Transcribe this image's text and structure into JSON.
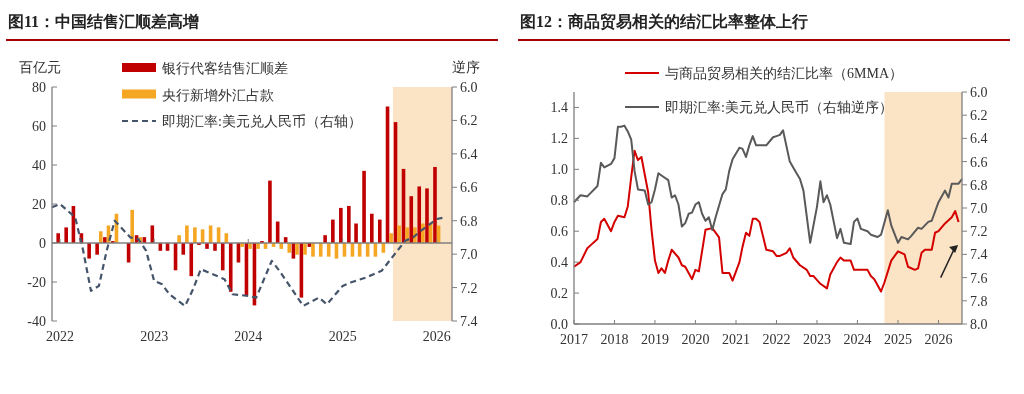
{
  "chart_data": [
    {
      "type": "bar",
      "title": "图11：中国结售汇顺差高增",
      "ylabel": "百亿元",
      "y2label": "逆序",
      "legend": "top",
      "x": [
        "2022-01",
        "2022-02",
        "2022-03",
        "2022-04",
        "2022-05",
        "2022-06",
        "2022-07",
        "2022-08",
        "2022-09",
        "2022-10",
        "2022-11",
        "2022-12",
        "2023-01",
        "2023-02",
        "2023-03",
        "2023-04",
        "2023-05",
        "2023-06",
        "2023-07",
        "2023-08",
        "2023-09",
        "2023-10",
        "2023-11",
        "2023-12",
        "2024-01",
        "2024-02",
        "2024-03",
        "2024-04",
        "2024-05",
        "2024-06",
        "2024-07",
        "2024-08",
        "2024-09",
        "2024-10",
        "2024-11",
        "2024-12",
        "2025-01",
        "2025-02",
        "2025-03",
        "2025-04",
        "2025-05",
        "2025-06",
        "2025-07",
        "2025-08",
        "2025-09",
        "2025-10",
        "2025-11",
        "2025-12",
        "2026-01"
      ],
      "xlim": [
        "2021-12",
        "2026-03"
      ],
      "xticks": [
        {
          "value": "2022-01",
          "label": "2022"
        },
        {
          "value": "2023-01",
          "label": "2023"
        },
        {
          "value": "2024-01",
          "label": "2024"
        },
        {
          "value": "2025-01",
          "label": "2025"
        },
        {
          "value": "2026-01",
          "label": "2026"
        }
      ],
      "ylim": [
        -40,
        80
      ],
      "yticks": [
        -40,
        -20,
        0,
        20,
        40,
        60,
        80
      ],
      "y2lim": [
        7.4,
        6.0
      ],
      "y2ticks": [
        {
          "value": 6,
          "label": "6.0"
        },
        {
          "value": 6.2,
          "label": "6.2"
        },
        {
          "value": 6.4,
          "label": "6.4"
        },
        {
          "value": 6.6,
          "label": "6.6"
        },
        {
          "value": 6.8,
          "label": "6.8"
        },
        {
          "value": 7,
          "label": "7.0"
        },
        {
          "value": 7.2,
          "label": "7.2"
        },
        {
          "value": 7.4,
          "label": "7.4"
        }
      ],
      "bands": [
        {
          "axis": "x",
          "from": "2025-07-15",
          "to": "2026-03",
          "color": "#fbe3c6"
        }
      ],
      "series": [
        {
          "name": "银行代客结售汇顺差",
          "color": "#c00000",
          "values": [
            5,
            8,
            19,
            5,
            -8,
            -6,
            3,
            1,
            0,
            -10,
            4,
            3,
            9,
            -4,
            -4,
            -14,
            -6,
            -17,
            -1,
            -3,
            -4,
            -14,
            -25,
            -10,
            -27,
            -32,
            1,
            32,
            11,
            3,
            -8,
            -28,
            -2,
            0,
            4,
            12,
            18,
            19,
            10,
            37,
            15,
            12,
            70,
            62,
            38,
            24,
            29,
            28,
            39
          ]
        },
        {
          "name": "央行新增外汇占款",
          "color": "#f5a623",
          "values": [
            0,
            0,
            0,
            0,
            0,
            6,
            9,
            15,
            0,
            17,
            3,
            0,
            0,
            0,
            0,
            4,
            9,
            8,
            7,
            9,
            8,
            5,
            null,
            -2,
            -3,
            -3,
            -3,
            -2,
            -3,
            -5,
            -6,
            -6,
            -7,
            -7,
            -7,
            -8,
            -7,
            -7,
            -7,
            -7,
            -7,
            -5,
            5,
            9,
            8,
            8,
            10,
            10,
            9
          ]
        },
        {
          "name": "即期汇率:美元兑人民币（右轴）",
          "type": "line",
          "axis": "y2",
          "line_style": "dashed",
          "color": "#44546a",
          "x": [
            "2021-12",
            "2022-01",
            "2022-03",
            "2022-04",
            "2022-05",
            "2022-06",
            "2022-07",
            "2022-08",
            "2022-10",
            "2022-11",
            "2022-12",
            "2023-01",
            "2023-02",
            "2023-03",
            "2023-05",
            "2023-06",
            "2023-07",
            "2023-08",
            "2023-10",
            "2023-11",
            "2024-01",
            "2024-02",
            "2024-04",
            "2024-05",
            "2024-08",
            "2024-10",
            "2024-11",
            "2025-01",
            "2025-02",
            "2025-04",
            "2025-05",
            "2025-06",
            "2025-08",
            "2025-09",
            "2025-10",
            "2025-11",
            "2026-01",
            "2026-02"
          ],
          "values": [
            6.72,
            6.7,
            6.78,
            6.98,
            7.22,
            7.19,
            6.98,
            6.8,
            6.9,
            6.91,
            6.98,
            7.16,
            7.18,
            7.24,
            7.31,
            7.21,
            7.09,
            7.11,
            7.15,
            7.24,
            7.25,
            7.26,
            7.04,
            7.1,
            7.31,
            7.26,
            7.3,
            7.19,
            7.17,
            7.14,
            7.12,
            7.1,
            6.98,
            6.92,
            6.9,
            6.86,
            6.79,
            6.78
          ]
        }
      ]
    },
    {
      "type": "line",
      "title": "图12：商品贸易相关的结汇比率整体上行",
      "legend": "top left",
      "xlim": [
        "2017-01",
        "2026-08"
      ],
      "xticks": [
        {
          "value": "2017-01",
          "label": "2017"
        },
        {
          "value": "2018-01",
          "label": "2018"
        },
        {
          "value": "2019-01",
          "label": "2019"
        },
        {
          "value": "2020-01",
          "label": "2020"
        },
        {
          "value": "2021-01",
          "label": "2021"
        },
        {
          "value": "2022-01",
          "label": "2022"
        },
        {
          "value": "2023-01",
          "label": "2023"
        },
        {
          "value": "2024-01",
          "label": "2024"
        },
        {
          "value": "2025-01",
          "label": "2025"
        },
        {
          "value": "2026-01",
          "label": "2026"
        }
      ],
      "ylim": [
        0,
        1.5
      ],
      "yticks": [
        {
          "value": 0,
          "label": "0.0"
        },
        {
          "value": 0.2,
          "label": "0.2"
        },
        {
          "value": 0.4,
          "label": "0.4"
        },
        {
          "value": 0.6,
          "label": "0.6"
        },
        {
          "value": 0.8,
          "label": "0.8"
        },
        {
          "value": 1,
          "label": "1.0"
        },
        {
          "value": 1.2,
          "label": "1.2"
        },
        {
          "value": 1.4,
          "label": "1.4"
        }
      ],
      "y2lim": [
        8.0,
        6.0
      ],
      "y2ticks": [
        {
          "value": 6,
          "label": "6.0"
        },
        {
          "value": 6.2,
          "label": "6.2"
        },
        {
          "value": 6.4,
          "label": "6.4"
        },
        {
          "value": 6.6,
          "label": "6.6"
        },
        {
          "value": 6.8,
          "label": "6.8"
        },
        {
          "value": 7,
          "label": "7.0"
        },
        {
          "value": 7.2,
          "label": "7.2"
        },
        {
          "value": 7.4,
          "label": "7.4"
        },
        {
          "value": 7.6,
          "label": "7.6"
        },
        {
          "value": 7.8,
          "label": "7.8"
        },
        {
          "value": 8,
          "label": "8.0"
        }
      ],
      "bands": [
        {
          "axis": "x",
          "from": "2024-09",
          "to": "2026-08",
          "color": "#fbe3c6"
        }
      ],
      "series": [
        {
          "name": "与商品贸易相关的结汇比率（6MMA）",
          "color": "#d40000",
          "x": [
            "2017-01",
            "2017-03",
            "2017-05",
            "2017-06",
            "2017-08",
            "2017-09",
            "2017-10",
            "2017-12",
            "2018-01",
            "2018-02",
            "2018-04",
            "2018-05",
            "2018-06",
            "2018-07",
            "2018-08",
            "2018-09",
            "2018-11",
            "2018-12",
            "2019-01",
            "2019-02",
            "2019-03",
            "2019-04",
            "2019-05",
            "2019-06",
            "2019-08",
            "2019-09",
            "2019-10",
            "2019-11",
            "2019-12",
            "2020-01",
            "2020-02",
            "2020-04",
            "2020-06",
            "2020-08",
            "2020-09",
            "2020-11",
            "2020-12",
            "2021-02",
            "2021-03",
            "2021-04",
            "2021-05",
            "2021-06",
            "2021-07",
            "2021-08",
            "2021-10",
            "2021-12",
            "2022-01",
            "2022-02",
            "2022-04",
            "2022-05",
            "2022-06",
            "2022-08",
            "2022-10",
            "2022-11",
            "2022-12",
            "2023-02",
            "2023-04",
            "2023-05",
            "2023-07",
            "2023-08",
            "2023-09",
            "2023-11",
            "2023-12",
            "2024-02",
            "2024-04",
            "2024-05",
            "2024-06",
            "2024-08",
            "2024-09",
            "2024-11",
            "2025-01",
            "2025-03",
            "2025-04",
            "2025-06",
            "2025-07",
            "2025-08",
            "2025-09",
            "2025-11",
            "2025-12",
            "2026-01",
            "2026-03",
            "2026-05",
            "2026-06",
            "2026-07"
          ],
          "values": [
            0.37,
            0.4,
            0.49,
            0.51,
            0.55,
            0.66,
            0.68,
            0.6,
            0.66,
            0.7,
            0.69,
            0.76,
            0.95,
            1.12,
            1.06,
            1.08,
            0.85,
            0.61,
            0.41,
            0.33,
            0.36,
            0.33,
            0.41,
            0.48,
            0.43,
            0.38,
            0.37,
            0.33,
            0.29,
            0.35,
            0.34,
            0.61,
            0.62,
            0.56,
            0.33,
            0.33,
            0.28,
            0.4,
            0.5,
            0.59,
            0.57,
            0.68,
            0.68,
            0.66,
            0.48,
            0.47,
            0.44,
            0.44,
            0.46,
            0.49,
            0.43,
            0.38,
            0.35,
            0.31,
            0.31,
            0.26,
            0.23,
            0.32,
            0.4,
            0.43,
            0.41,
            0.41,
            0.35,
            0.35,
            0.35,
            0.31,
            0.29,
            0.21,
            0.27,
            0.41,
            0.47,
            0.45,
            0.37,
            0.35,
            0.36,
            0.46,
            0.48,
            0.48,
            0.59,
            0.6,
            0.65,
            0.69,
            0.73,
            0.66
          ]
        },
        {
          "name": "即期汇率:美元兑人民币（右轴逆序）",
          "axis": "y2",
          "color": "#595959",
          "x": [
            "2017-01",
            "2017-03",
            "2017-05",
            "2017-06",
            "2017-08",
            "2017-09",
            "2017-10",
            "2017-12",
            "2018-01",
            "2018-02",
            "2018-03",
            "2018-04",
            "2018-05",
            "2018-06",
            "2018-07",
            "2018-08",
            "2018-10",
            "2018-11",
            "2018-12",
            "2019-01",
            "2019-02",
            "2019-03",
            "2019-05",
            "2019-06",
            "2019-07",
            "2019-08",
            "2019-09",
            "2019-10",
            "2019-11",
            "2019-12",
            "2020-01",
            "2020-02",
            "2020-03",
            "2020-04",
            "2020-05",
            "2020-06",
            "2020-07",
            "2020-09",
            "2020-10",
            "2020-11",
            "2020-12",
            "2021-02",
            "2021-03",
            "2021-04",
            "2021-05",
            "2021-06",
            "2021-07",
            "2021-08",
            "2021-10",
            "2021-12",
            "2022-01",
            "2022-02",
            "2022-03",
            "2022-05",
            "2022-07",
            "2022-08",
            "2022-09",
            "2022-11",
            "2023-01",
            "2023-02",
            "2023-03",
            "2023-04",
            "2023-05",
            "2023-07",
            "2023-08",
            "2023-09",
            "2023-11",
            "2023-12",
            "2024-01",
            "2024-02",
            "2024-04",
            "2024-05",
            "2024-07",
            "2024-08",
            "2024-10",
            "2024-11",
            "2025-01",
            "2025-02",
            "2025-04",
            "2025-05",
            "2025-07",
            "2025-08",
            "2025-10",
            "2025-11",
            "2026-01",
            "2026-03",
            "2026-04",
            "2026-05",
            "2026-07",
            "2026-08"
          ],
          "values": [
            6.95,
            6.89,
            6.9,
            6.87,
            6.81,
            6.61,
            6.65,
            6.62,
            6.57,
            6.3,
            6.3,
            6.29,
            6.34,
            6.41,
            6.68,
            6.84,
            6.85,
            6.97,
            6.95,
            6.84,
            6.7,
            6.72,
            6.76,
            6.91,
            6.89,
            6.97,
            7.16,
            7.13,
            7.05,
            7.04,
            6.97,
            6.95,
            7.05,
            7.11,
            7.08,
            7.19,
            7.08,
            6.88,
            6.84,
            6.68,
            6.58,
            6.48,
            6.49,
            6.56,
            6.46,
            6.38,
            6.46,
            6.46,
            6.46,
            6.39,
            6.38,
            6.37,
            6.33,
            6.6,
            6.7,
            6.75,
            6.85,
            7.3,
            6.99,
            6.77,
            6.95,
            6.89,
            6.97,
            7.26,
            7.18,
            7.3,
            7.31,
            7.12,
            7.09,
            7.18,
            7.2,
            7.23,
            7.25,
            7.23,
            7.02,
            7.15,
            7.3,
            7.25,
            7.27,
            7.24,
            7.17,
            7.18,
            7.12,
            7.11,
            6.95,
            6.85,
            6.91,
            6.79,
            6.79,
            6.75
          ]
        }
      ]
    }
  ]
}
